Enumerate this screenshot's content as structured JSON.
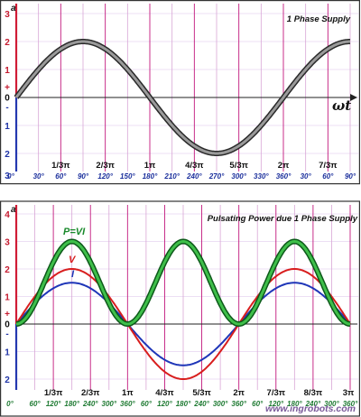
{
  "chart_data": [
    {
      "type": "line",
      "title": "1 Phase Supply",
      "ylabel": "a",
      "xlabel": "ωt",
      "ylim": [
        -2,
        3
      ],
      "ytick_labels": [
        "3",
        "2",
        "1",
        "+",
        "0",
        "-",
        "1",
        "2",
        "3"
      ],
      "pi_ticks": [
        "1/3π",
        "2/3π",
        "1π",
        "4/3π",
        "5/3π",
        "2π",
        "7/3π"
      ],
      "degree_ticks": [
        "0°",
        "30°",
        "60°",
        "90°",
        "120°",
        "150°",
        "180°",
        "210°",
        "240°",
        "270°",
        "300°",
        "330°",
        "360°",
        "30°",
        "60°",
        "90°"
      ],
      "x_degrees": [
        0,
        15,
        30,
        45,
        60,
        75,
        90,
        105,
        120,
        135,
        150,
        165,
        180,
        195,
        210,
        225,
        240,
        255,
        270,
        285,
        300,
        315,
        330,
        345,
        360,
        375,
        390,
        405,
        420,
        435,
        450
      ],
      "series": [
        {
          "values": [
            0,
            0.52,
            1.0,
            1.41,
            1.73,
            1.93,
            2.0,
            1.93,
            1.73,
            1.41,
            1.0,
            0.52,
            0,
            -0.52,
            -1.0,
            -1.41,
            -1.73,
            -1.93,
            -2.0,
            -1.93,
            -1.73,
            -1.41,
            -1.0,
            -0.52,
            0,
            0.52,
            1.0,
            1.41,
            1.73,
            1.93,
            2.0
          ],
          "color": "#555555"
        }
      ]
    },
    {
      "type": "line",
      "title": "Pulsating Power due 1 Phase Supply",
      "ylabel": "a",
      "ylim": [
        -2,
        4
      ],
      "ytick_labels": [
        "4",
        "3",
        "2",
        "1",
        "+",
        "0",
        "-",
        "1",
        "2"
      ],
      "pi_ticks": [
        "1/3π",
        "2/3π",
        "1π",
        "4/3π",
        "5/3π",
        "2π",
        "7/3π",
        "8/3π",
        "3π"
      ],
      "degree_ticks": [
        "0°",
        "60°",
        "120°",
        "180°",
        "240°",
        "300°",
        "360°",
        "60°",
        "120°",
        "180°",
        "240°",
        "300°",
        "360°",
        "60°",
        "120°",
        "180°",
        "240°",
        "300°",
        "360°"
      ],
      "x_degrees": [
        0,
        15,
        30,
        45,
        60,
        75,
        90,
        105,
        120,
        135,
        150,
        165,
        180,
        195,
        210,
        225,
        240,
        255,
        270,
        285,
        300,
        315,
        330,
        345,
        360,
        375,
        390,
        405,
        420,
        435,
        450,
        465,
        480,
        495,
        510,
        525,
        540
      ],
      "series": [
        {
          "name": "P=VI",
          "color": "#1a8a2c",
          "values": [
            0,
            0.2,
            0.75,
            1.5,
            2.25,
            2.8,
            3.0,
            2.8,
            2.25,
            1.5,
            0.75,
            0.2,
            0,
            0.2,
            0.75,
            1.5,
            2.25,
            2.8,
            3.0,
            2.8,
            2.25,
            1.5,
            0.75,
            0.2,
            0,
            0.2,
            0.75,
            1.5,
            2.25,
            2.8,
            3.0,
            2.8,
            2.25,
            1.5,
            0.75,
            0.2,
            0
          ]
        },
        {
          "name": "V",
          "color": "#d81e1e",
          "values": [
            0,
            0.52,
            1.0,
            1.41,
            1.73,
            1.93,
            2.0,
            1.93,
            1.73,
            1.41,
            1.0,
            0.52,
            0,
            -0.52,
            -1.0,
            -1.41,
            -1.73,
            -1.93,
            -2.0,
            -1.93,
            -1.73,
            -1.41,
            -1.0,
            -0.52,
            0,
            0.52,
            1.0,
            1.41,
            1.73,
            1.93,
            2.0,
            1.93,
            1.73,
            1.41,
            1.0,
            0.52,
            0
          ]
        },
        {
          "name": "I",
          "color": "#1f36b8",
          "values": [
            0,
            0.39,
            0.75,
            1.06,
            1.3,
            1.45,
            1.5,
            1.45,
            1.3,
            1.06,
            0.75,
            0.39,
            0,
            -0.39,
            -0.75,
            -1.06,
            -1.3,
            -1.45,
            -1.5,
            -1.45,
            -1.3,
            -1.06,
            -0.75,
            -0.39,
            0,
            0.39,
            0.75,
            1.06,
            1.3,
            1.45,
            1.5,
            1.45,
            1.3,
            1.06,
            0.75,
            0.39,
            0
          ]
        }
      ]
    }
  ],
  "watermark": "www.ingrobots.com"
}
